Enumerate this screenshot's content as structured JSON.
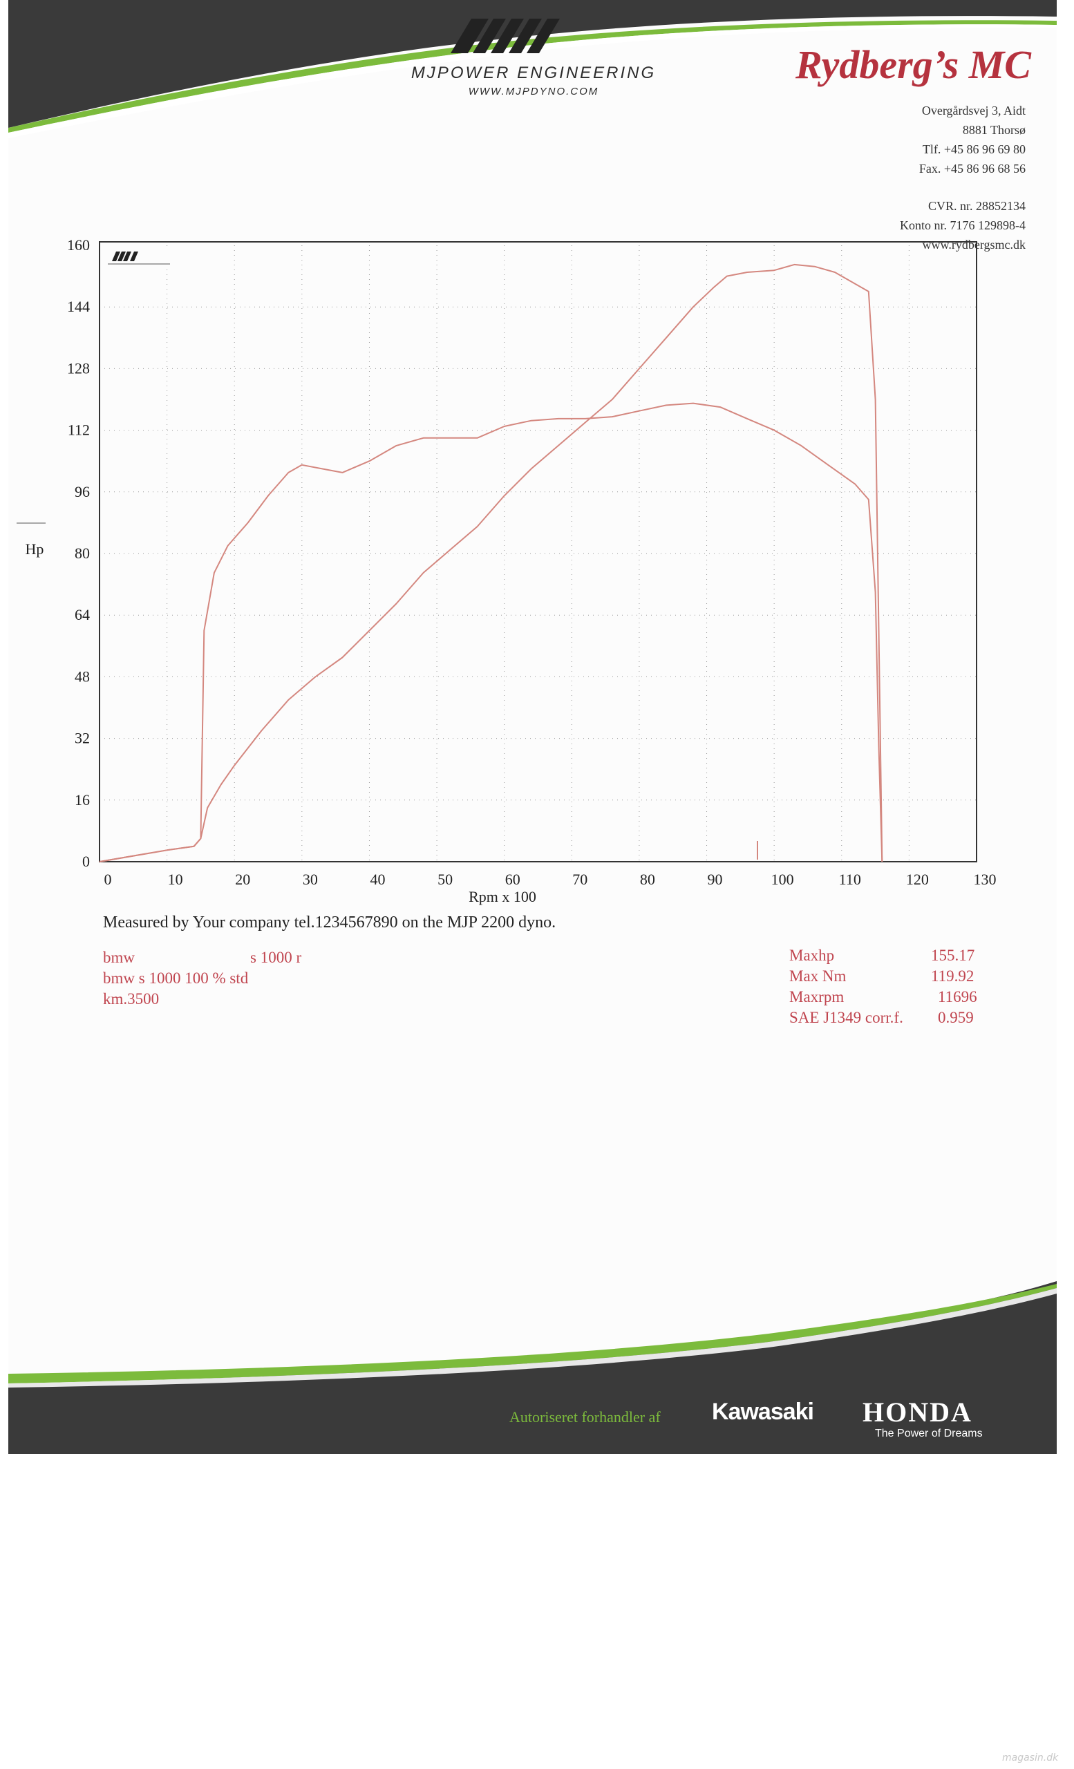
{
  "header": {
    "brand_name": "MJPOWER ENGINEERING",
    "brand_url": "WWW.MJPDYNO.COM",
    "company": "Rydberg’s MC",
    "address_lines": [
      "Overgårdsvej 3, Aidt",
      "8881 Thorsø",
      "Tlf. +45 86 96 69 80",
      "Fax. +45 86 96 68 56",
      "CVR. nr. 28852134",
      "Konto nr. 7176 129898-4",
      "www.rydbergsmc.dk"
    ],
    "colors": {
      "accent_red": "#b5323e",
      "green_stripe": "#7cbb3c",
      "dark_band": "#3a3a3a"
    }
  },
  "chart_data": {
    "type": "line",
    "title": "",
    "xlabel": "Rpm x 100",
    "ylabel": "Hp",
    "xlim": [
      0,
      130
    ],
    "ylim": [
      0,
      160
    ],
    "x_ticks": [
      "0",
      "10",
      "20",
      "30",
      "40",
      "50",
      "60",
      "70",
      "80",
      "90",
      "100",
      "110",
      "120",
      "130"
    ],
    "y_ticks": [
      "0",
      "16",
      "32",
      "48",
      "64",
      "80",
      "96",
      "112",
      "128",
      "144",
      "160"
    ],
    "grid": true,
    "line_color": "#d4877f",
    "series": [
      {
        "points": [
          [
            0,
            0
          ],
          [
            5,
            1.5
          ],
          [
            10,
            3
          ],
          [
            14,
            4
          ],
          [
            15,
            6
          ],
          [
            16,
            14
          ],
          [
            18,
            20
          ],
          [
            20,
            25
          ],
          [
            24,
            34
          ],
          [
            28,
            42
          ],
          [
            32,
            48
          ],
          [
            36,
            53
          ],
          [
            40,
            60
          ],
          [
            44,
            67
          ],
          [
            48,
            75
          ],
          [
            52,
            81
          ],
          [
            56,
            87
          ],
          [
            60,
            95
          ],
          [
            64,
            102
          ],
          [
            68,
            108
          ],
          [
            72,
            114
          ],
          [
            76,
            120
          ],
          [
            80,
            128
          ],
          [
            84,
            136
          ],
          [
            88,
            144
          ],
          [
            91,
            149
          ],
          [
            93,
            152
          ],
          [
            96,
            153
          ],
          [
            100,
            153.5
          ],
          [
            103,
            155
          ],
          [
            106,
            154.5
          ],
          [
            109,
            153
          ],
          [
            112,
            150
          ],
          [
            114,
            148
          ],
          [
            115,
            120
          ],
          [
            115.5,
            60
          ],
          [
            116,
            0
          ]
        ]
      },
      {
        "points": [
          [
            0,
            0
          ],
          [
            5,
            1.5
          ],
          [
            10,
            3
          ],
          [
            14,
            4
          ],
          [
            15,
            6
          ],
          [
            15.5,
            60
          ],
          [
            17,
            75
          ],
          [
            19,
            82
          ],
          [
            22,
            88
          ],
          [
            25,
            95
          ],
          [
            28,
            101
          ],
          [
            30,
            103
          ],
          [
            33,
            102
          ],
          [
            36,
            101
          ],
          [
            40,
            104
          ],
          [
            44,
            108
          ],
          [
            48,
            110
          ],
          [
            52,
            110
          ],
          [
            56,
            110
          ],
          [
            60,
            113
          ],
          [
            64,
            114.5
          ],
          [
            68,
            115
          ],
          [
            72,
            115
          ],
          [
            76,
            115.5
          ],
          [
            80,
            117
          ],
          [
            84,
            118.5
          ],
          [
            88,
            119
          ],
          [
            92,
            118
          ],
          [
            96,
            115
          ],
          [
            100,
            112
          ],
          [
            104,
            108
          ],
          [
            108,
            103
          ],
          [
            112,
            98
          ],
          [
            114,
            94
          ],
          [
            115,
            70
          ],
          [
            115.5,
            30
          ],
          [
            116,
            0
          ]
        ]
      }
    ]
  },
  "measured_text": "Measured by Your company tel.1234567890 on the MJP 2200 dyno.",
  "run_info": {
    "line1_left": "bmw",
    "line1_right": "s 1000 r",
    "line2": "bmw s 1000 100 % std",
    "line3": "km.3500"
  },
  "results": [
    {
      "label": "Maxhp",
      "value": "155.17"
    },
    {
      "label": "Max Nm",
      "value": "119.92"
    },
    {
      "label": "Maxrpm",
      "value": "11696"
    },
    {
      "label": "SAE J1349 corr.f.",
      "value": "0.959"
    }
  ],
  "footer": {
    "dealer_text": "Autoriseret forhandler af",
    "kawasaki": "Kawasaki",
    "honda": "HONDA",
    "honda_tagline": "The Power of Dreams"
  },
  "watermark": "magasin.dk"
}
